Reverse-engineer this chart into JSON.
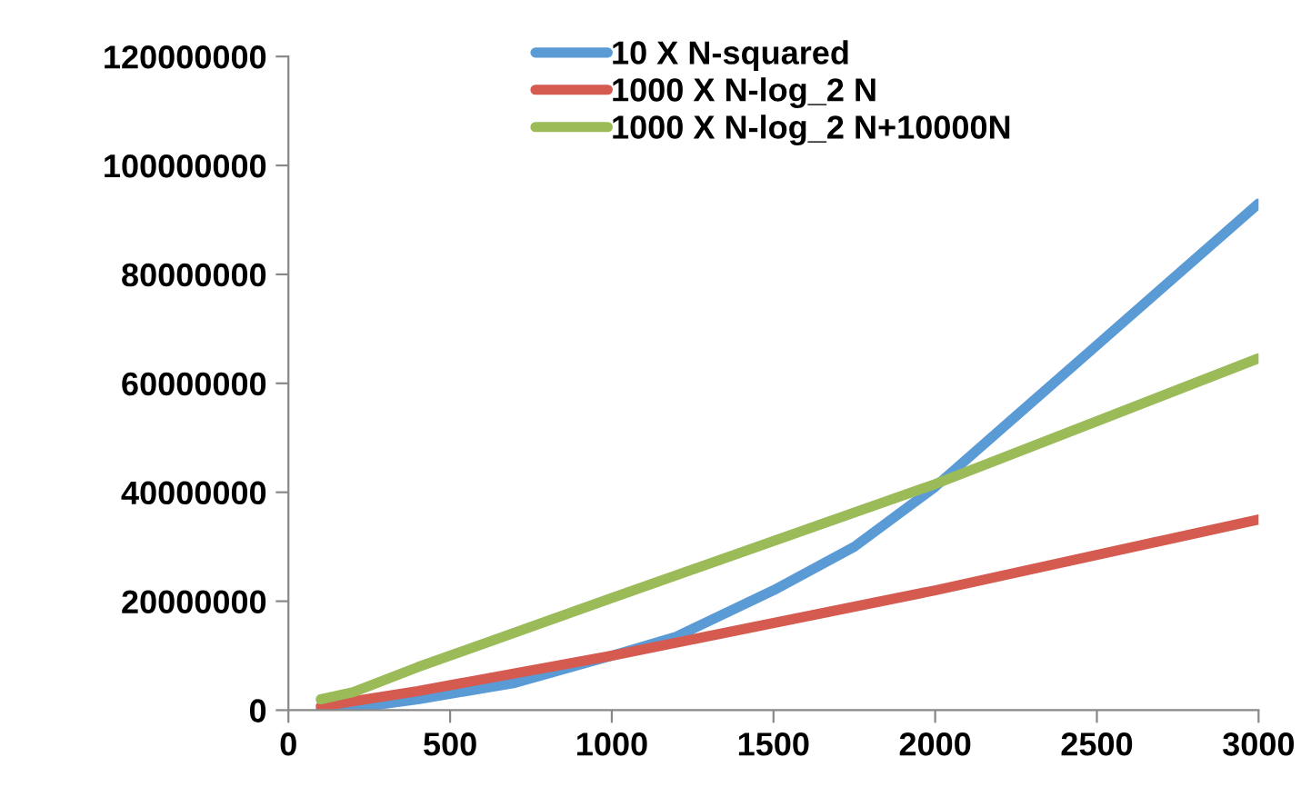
{
  "chart_data": {
    "type": "line",
    "xlim": [
      0,
      3000
    ],
    "ylim": [
      0,
      120000000
    ],
    "xticks": [
      0,
      500,
      1000,
      1500,
      2000,
      2500,
      3000
    ],
    "yticks": [
      0,
      20000000,
      40000000,
      60000000,
      80000000,
      100000000,
      120000000
    ],
    "grid": false,
    "legend": "top",
    "marker": "none",
    "line_style": "solid",
    "series": [
      {
        "name": "10 X N-squared",
        "color": "#5b9bd5",
        "x": [
          100,
          200,
          400,
          700,
          1000,
          1200,
          1500,
          1750,
          2000,
          2250,
          2500,
          3000
        ],
        "values": [
          100000,
          400000,
          2000000,
          5000000,
          10000000,
          13500000,
          22000000,
          30000000,
          41000000,
          54000000,
          67000000,
          93000000
        ]
      },
      {
        "name": "1000 X N-log_2 N",
        "color": "#d55a50",
        "x": [
          100,
          400,
          1000,
          2000,
          3000
        ],
        "values": [
          700000,
          3500000,
          10000000,
          22000000,
          35000000
        ]
      },
      {
        "name": "1000 X N-log_2 N+10000N",
        "color": "#9bbb59",
        "x": [
          100,
          200,
          400,
          1000,
          2000,
          3000
        ],
        "values": [
          2000000,
          3300000,
          7900000,
          20600000,
          41500000,
          64600000
        ]
      }
    ]
  }
}
